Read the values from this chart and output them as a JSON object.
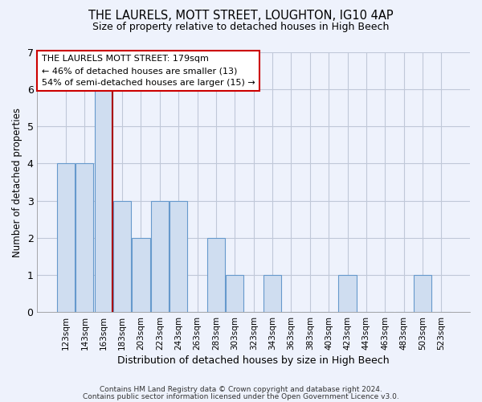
{
  "title": "THE LAURELS, MOTT STREET, LOUGHTON, IG10 4AP",
  "subtitle": "Size of property relative to detached houses in High Beech",
  "xlabel": "Distribution of detached houses by size in High Beech",
  "ylabel": "Number of detached properties",
  "footnote1": "Contains HM Land Registry data © Crown copyright and database right 2024.",
  "footnote2": "Contains public sector information licensed under the Open Government Licence v3.0.",
  "bins": [
    "123sqm",
    "143sqm",
    "163sqm",
    "183sqm",
    "203sqm",
    "223sqm",
    "243sqm",
    "263sqm",
    "283sqm",
    "303sqm",
    "323sqm",
    "343sqm",
    "363sqm",
    "383sqm",
    "403sqm",
    "423sqm",
    "443sqm",
    "463sqm",
    "483sqm",
    "503sqm",
    "523sqm"
  ],
  "values": [
    4,
    4,
    6,
    3,
    2,
    3,
    3,
    0,
    2,
    1,
    0,
    1,
    0,
    0,
    0,
    1,
    0,
    0,
    0,
    1,
    0
  ],
  "bar_color": "#cfddf0",
  "bar_edge_color": "#6699cc",
  "ylim": [
    0,
    7
  ],
  "yticks": [
    0,
    1,
    2,
    3,
    4,
    5,
    6,
    7
  ],
  "property_line_x": 2.5,
  "property_line_color": "#aa0000",
  "annotation_box_text": "THE LAURELS MOTT STREET: 179sqm\n← 46% of detached houses are smaller (13)\n54% of semi-detached houses are larger (15) →",
  "bg_color": "#eef2fc",
  "plot_bg_color": "#eef2fc",
  "grid_color": "#c0c8d8"
}
